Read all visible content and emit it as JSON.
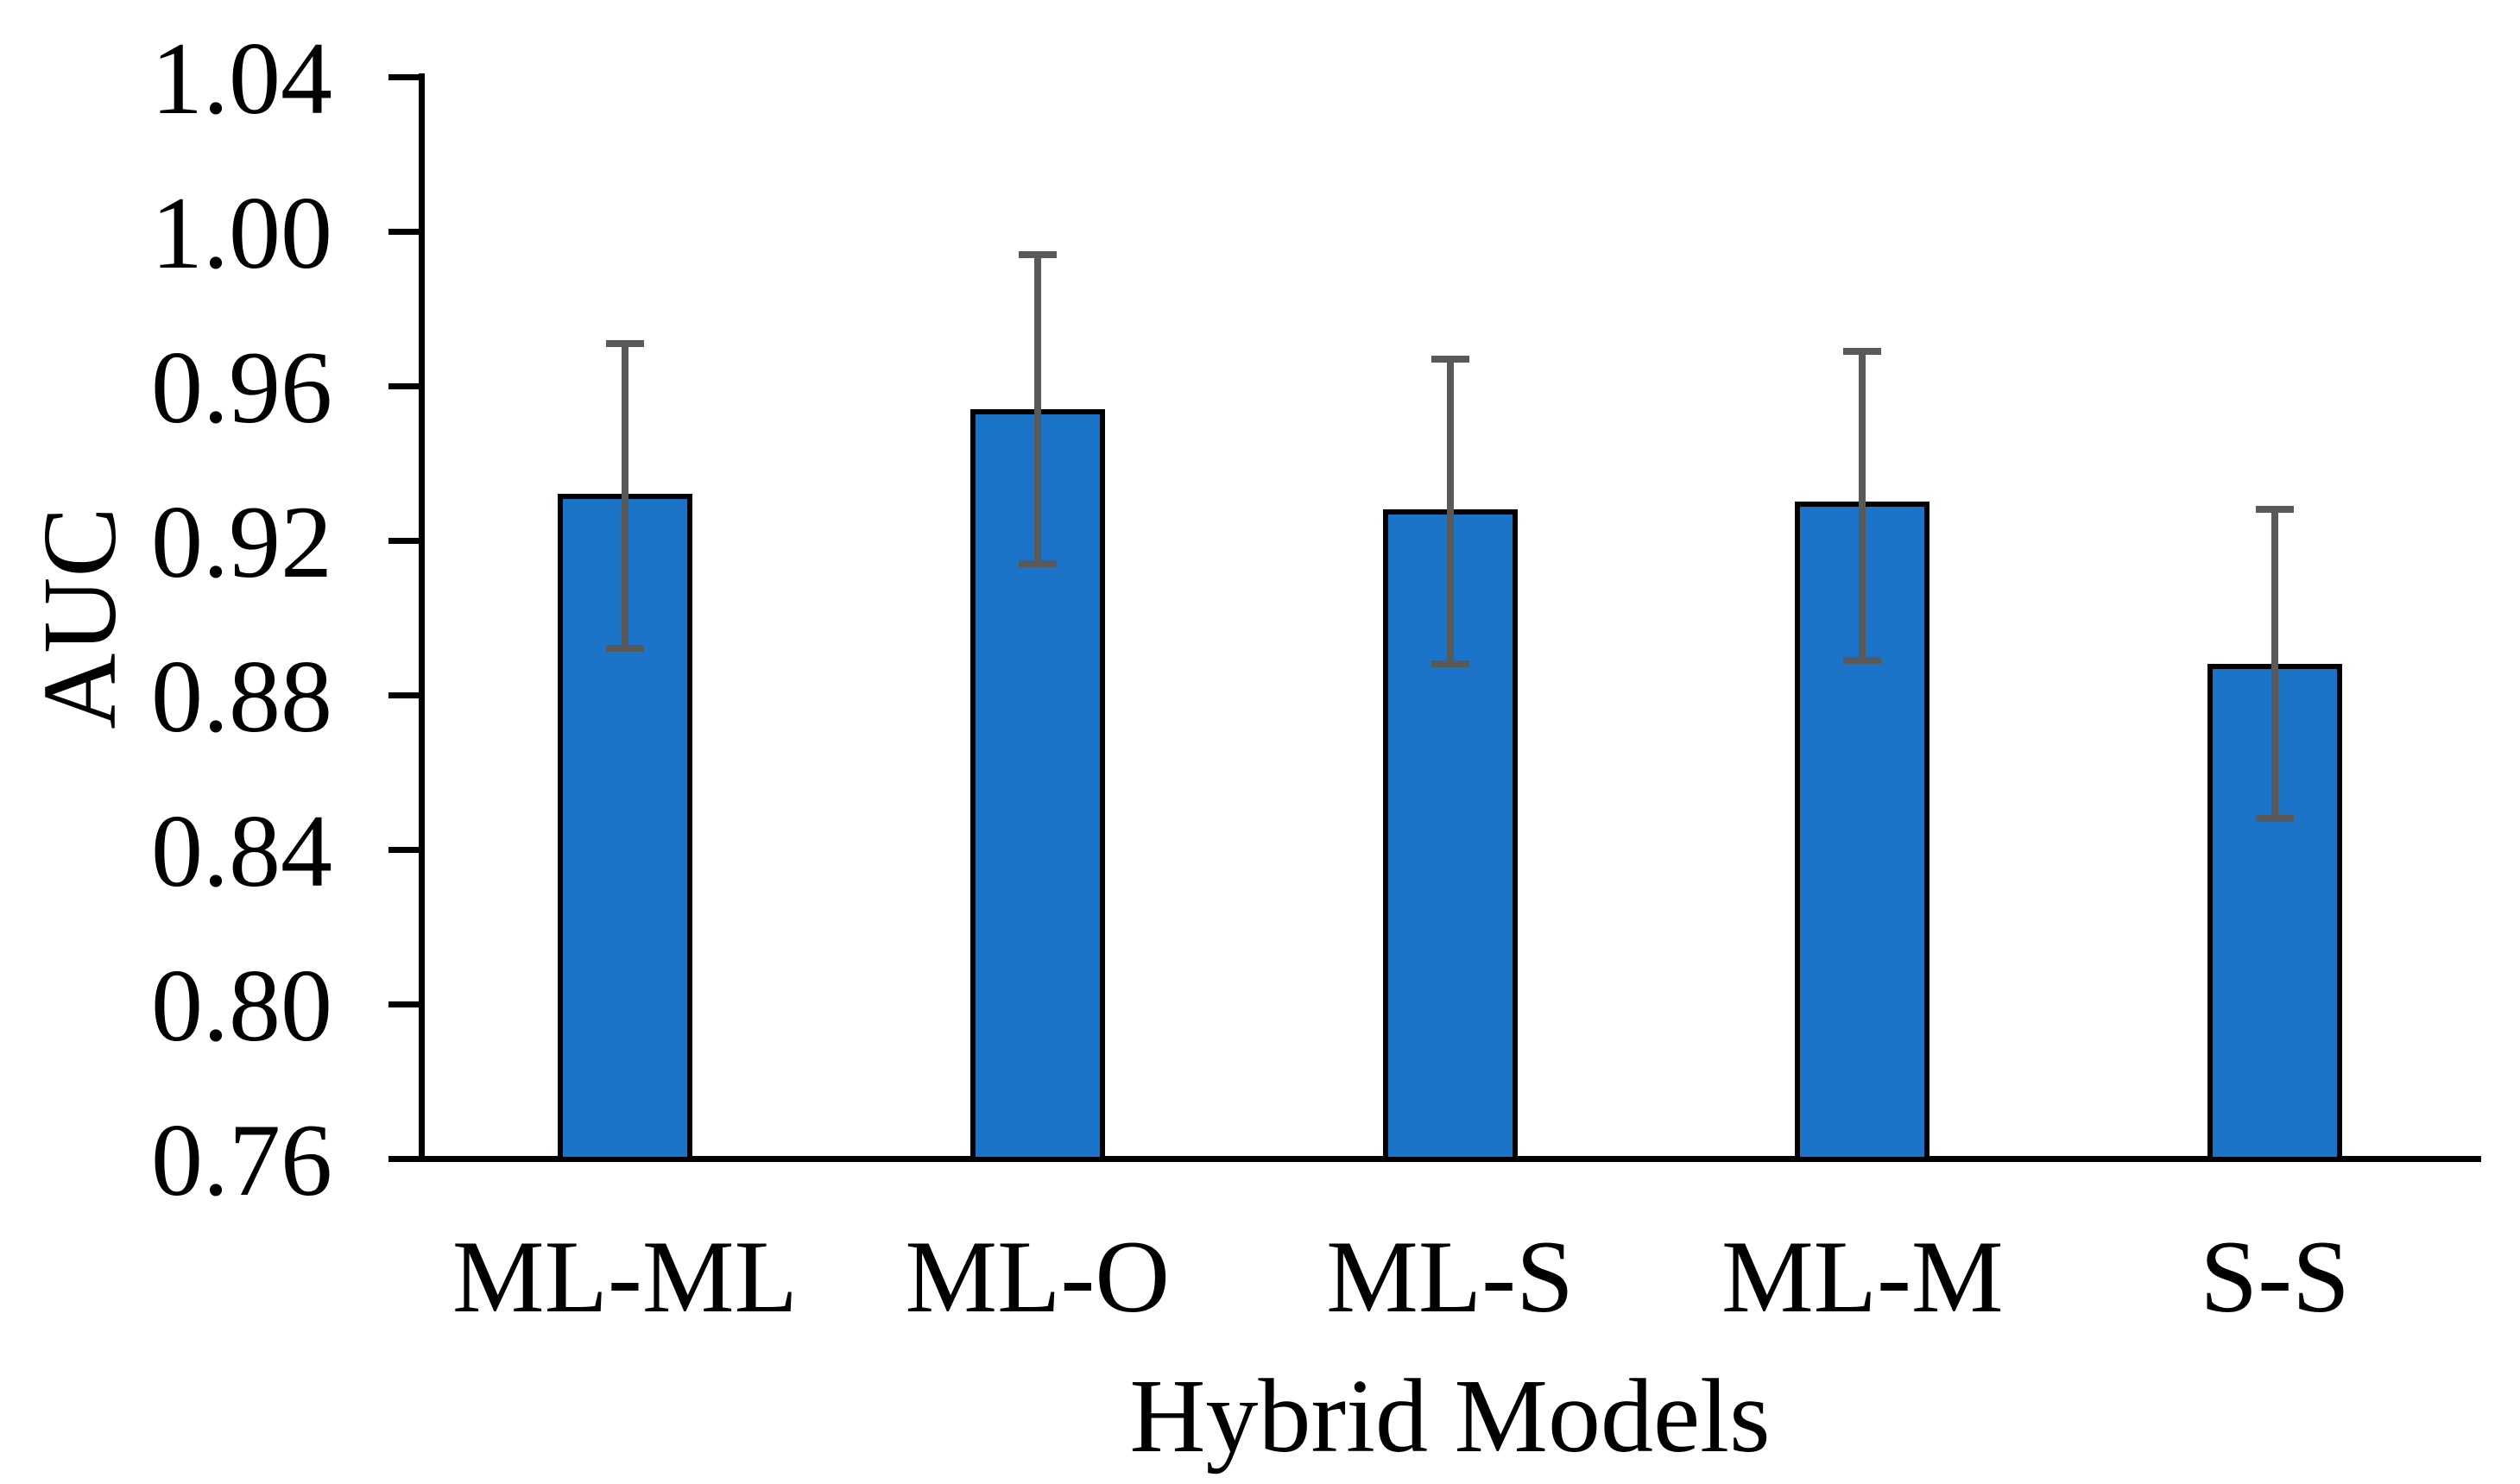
{
  "chart_data": {
    "type": "bar",
    "title": "",
    "xlabel": "Hybrid Models",
    "ylabel": "AUC",
    "categories": [
      "ML-ML",
      "ML-O",
      "ML-S",
      "ML-M",
      "S-S"
    ],
    "values": [
      0.932,
      0.954,
      0.928,
      0.93,
      0.888
    ],
    "error_low": [
      0.892,
      0.914,
      0.888,
      0.889,
      0.848
    ],
    "error_high": [
      0.971,
      0.994,
      0.967,
      0.969,
      0.928
    ],
    "ylim": [
      0.76,
      1.04
    ],
    "ytick_step": 0.04,
    "ytick_labels": [
      "0.76",
      "0.80",
      "0.84",
      "0.88",
      "0.92",
      "0.96",
      "1.00",
      "1.04"
    ],
    "grid": false,
    "legend": null,
    "colors": {
      "bar_fill": "#1B74C8",
      "bar_border": "#000000",
      "error_bar": "#595959",
      "axis": "#000000",
      "text": "#000000",
      "background": "#ffffff"
    }
  }
}
